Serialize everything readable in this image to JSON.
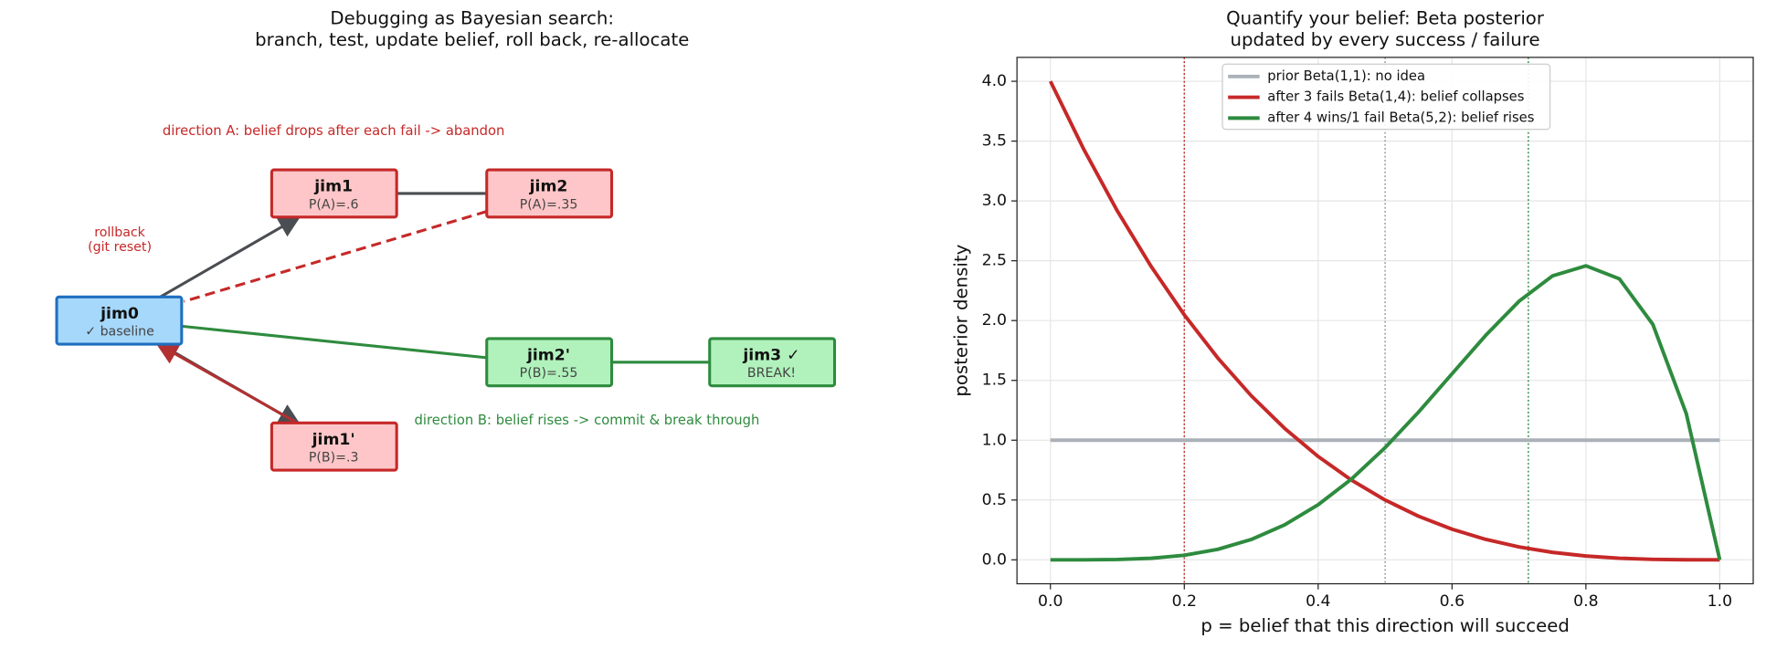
{
  "diagram": {
    "title": [
      "Debugging as Bayesian search:",
      "branch, test, update belief, roll back, re-allocate"
    ],
    "nodes": [
      {
        "label": "jim0",
        "sublabel": "✓ baseline"
      },
      {
        "label": "jim1",
        "sublabel": "P(A)=.6"
      },
      {
        "label": "jim2",
        "sublabel": "P(A)=.35"
      },
      {
        "label": "jim2'",
        "sublabel": "P(B)=.55"
      },
      {
        "label": "jim3 ✓",
        "sublabel": "BREAK!"
      },
      {
        "label": "jim1'",
        "sublabel": "P(B)=.3"
      }
    ],
    "annotations": {
      "direction_a": "direction A: belief drops after each fail -> abandon",
      "rollback": [
        "rollback",
        "(git reset)"
      ],
      "direction_b": "direction B: belief rises -> commit & break through"
    }
  },
  "chart_data": {
    "type": "line",
    "title": [
      "Quantify your belief: Beta posterior",
      "updated by every success / failure"
    ],
    "x_label": "p = belief that this direction will succeed",
    "y_label": "posterior density",
    "x": [
      0,
      0.05,
      0.1,
      0.15,
      0.2,
      0.25,
      0.3,
      0.35,
      0.4,
      0.45,
      0.5,
      0.55,
      0.6,
      0.65,
      0.7,
      0.75,
      0.8,
      0.85,
      0.9,
      0.95,
      1
    ],
    "series": [
      {
        "name": "prior Beta(1,1): no idea",
        "color": "#aab1b8",
        "values": [
          1,
          1,
          1,
          1,
          1,
          1,
          1,
          1,
          1,
          1,
          1,
          1,
          1,
          1,
          1,
          1,
          1,
          1,
          1,
          1,
          1
        ]
      },
      {
        "name": "after 3 fails Beta(1,4): belief collapses",
        "color": "#c62828",
        "values": [
          4,
          3.4295,
          2.916,
          2.4565,
          2.048,
          1.6875,
          1.372,
          1.0985,
          0.864,
          0.6655,
          0.5,
          0.3645,
          0.256,
          0.1715,
          0.108,
          0.0625,
          0.032,
          0.0135,
          0.004,
          0.0005,
          0
        ]
      },
      {
        "name": "after 4 wins/1 fail Beta(5,2): belief rises",
        "color": "#2e8b3e",
        "values": [
          0,
          0.00018,
          0.0027,
          0.0129,
          0.0384,
          0.0879,
          0.1701,
          0.2926,
          0.4608,
          0.6766,
          0.9375,
          1.2353,
          1.5552,
          1.8743,
          2.1609,
          2.373,
          2.4576,
          2.349,
          1.9683,
          1.2218,
          0
        ]
      }
    ],
    "vlines": [
      {
        "value": 0.2,
        "color": "#c62828"
      },
      {
        "value": 0.5,
        "color": "#999999"
      },
      {
        "value": 0.714,
        "color": "#2e8b3e"
      }
    ],
    "xlim": [
      -0.05,
      1.05
    ],
    "ylim": [
      -0.2,
      4.2
    ],
    "xticks": [
      {
        "value": 0,
        "label": "0.0"
      },
      {
        "value": 0.2,
        "label": "0.2"
      },
      {
        "value": 0.4,
        "label": "0.4"
      },
      {
        "value": 0.6,
        "label": "0.6"
      },
      {
        "value": 0.8,
        "label": "0.8"
      },
      {
        "value": 1,
        "label": "1.0"
      }
    ],
    "yticks": [
      {
        "value": 0,
        "label": "0.0"
      },
      0.5,
      {
        "value": 1,
        "label": "1.0"
      },
      1.5,
      {
        "value": 2,
        "label": "2.0"
      },
      2.5,
      {
        "value": 3,
        "label": "3.0"
      },
      3.5,
      {
        "value": 4,
        "label": "4.0"
      }
    ],
    "grid": true,
    "legend": "upper center"
  }
}
